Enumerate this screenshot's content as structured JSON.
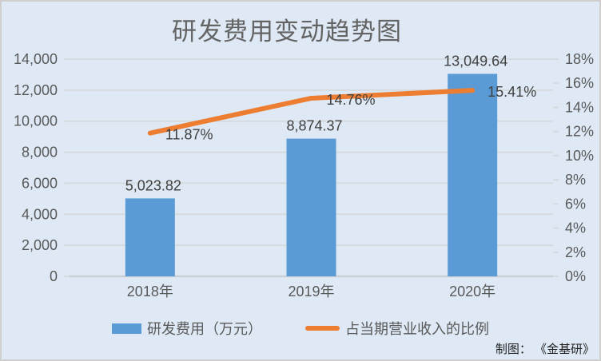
{
  "title": "研发费用变动趋势图",
  "credit": "制图： 《金基研》",
  "legend": {
    "items": [
      {
        "label": "研发费用（万元）",
        "type": "bar-swatch",
        "color": "#5B9BD5"
      },
      {
        "label": "占当期营业收入的比例",
        "type": "line-swatch",
        "color": "#ED7D31"
      }
    ]
  },
  "colors": {
    "background": "#dee9f5",
    "frame_border": "#cfcfcf",
    "bar": "#5B9BD5",
    "line": "#ED7D31",
    "gridline": "#d5dade",
    "axis_line": "#c9cfd6",
    "axis_text": "#595959",
    "data_label_text": "#3f3f3f",
    "title_text": "#646464"
  },
  "chart_data": {
    "type": "combo",
    "title": "研发费用变动趋势图",
    "categories": [
      "2018年",
      "2019年",
      "2020年"
    ],
    "series": [
      {
        "name": "研发费用（万元）",
        "type": "bar",
        "axis": "left",
        "values": [
          5023.82,
          8874.37,
          13049.64
        ],
        "labels": [
          "5,023.82",
          "8,874.37",
          "13,049.64"
        ],
        "color": "#5B9BD5"
      },
      {
        "name": "占当期营业收入的比例",
        "type": "line",
        "axis": "right",
        "values": [
          11.87,
          14.76,
          15.41
        ],
        "labels": [
          "11.87%",
          "14.76%",
          "15.41%"
        ],
        "color": "#ED7D31"
      }
    ],
    "left_axis": {
      "min": 0,
      "max": 14000,
      "step": 2000,
      "tick_labels": [
        "0",
        "2,000",
        "4,000",
        "6,000",
        "8,000",
        "10,000",
        "12,000",
        "14,000"
      ]
    },
    "right_axis": {
      "min": 0,
      "max": 18,
      "step": 2,
      "tick_labels": [
        "0%",
        "2%",
        "4%",
        "6%",
        "8%",
        "10%",
        "12%",
        "14%",
        "16%",
        "18%"
      ]
    },
    "grid": true,
    "legend_position": "bottom",
    "credit": "制图： 《金基研》"
  }
}
